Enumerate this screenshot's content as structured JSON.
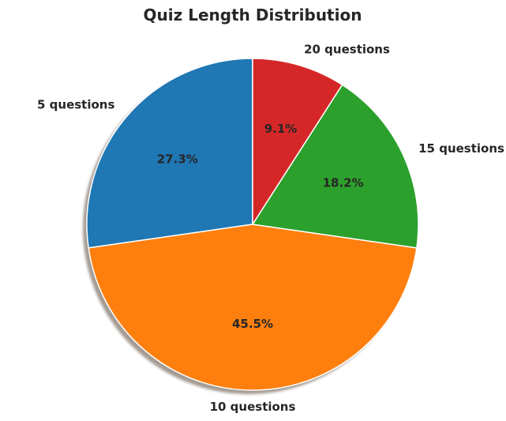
{
  "chart_data": {
    "type": "pie",
    "title": "Quiz Length Distribution",
    "categories": [
      "5 questions",
      "10 questions",
      "15 questions",
      "20 questions"
    ],
    "values": [
      27.3,
      45.5,
      18.2,
      9.1
    ],
    "percent_labels": [
      "27.3%",
      "45.5%",
      "18.2%",
      "9.1%"
    ],
    "colors": [
      "#1f77b4",
      "#ff7f0e",
      "#2ca02c",
      "#d62728"
    ],
    "start_angle_deg": 90,
    "direction": "counterclockwise",
    "shadow": true,
    "legend": "none"
  }
}
